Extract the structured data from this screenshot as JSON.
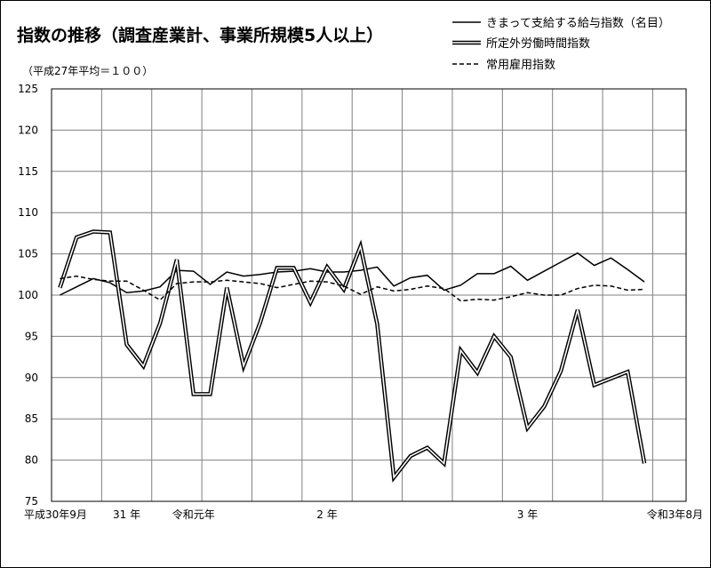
{
  "chart_data": {
    "type": "line",
    "title": "指数の推移（調査産業計、事業所規模5人以上）",
    "subtitle": "（平成27年平均＝１００）",
    "ylim": [
      75,
      125
    ],
    "yticks": [
      75,
      80,
      85,
      90,
      95,
      100,
      105,
      110,
      115,
      120,
      125
    ],
    "xlabels": [
      {
        "index": 0,
        "label": "平成30年9月"
      },
      {
        "index": 4,
        "label": "31 年"
      },
      {
        "index": 8,
        "label": "令和元年"
      },
      {
        "index": 16,
        "label": "2 年"
      },
      {
        "index": 28,
        "label": "3 年"
      },
      {
        "index": 35,
        "label": "令和3年8月"
      }
    ],
    "grid": true,
    "legend_position": "top-right",
    "series": [
      {
        "name": "きまって支給する給与指数（名目）",
        "style": "solid",
        "values": [
          100.0,
          101.0,
          102.0,
          101.5,
          100.3,
          100.5,
          101.0,
          103.0,
          102.9,
          101.3,
          102.8,
          102.3,
          102.5,
          102.8,
          102.9,
          103.2,
          102.8,
          102.8,
          103.0,
          103.4,
          101.1,
          102.1,
          102.4,
          100.6,
          101.2,
          102.6,
          102.6,
          103.5,
          101.8,
          102.9,
          104.0,
          105.1,
          103.6,
          104.5,
          103.1,
          101.6
        ]
      },
      {
        "name": "所定外労働時間指数",
        "style": "double",
        "values": [
          100.9,
          107.0,
          107.7,
          107.6,
          94.0,
          91.4,
          96.6,
          104.3,
          88.0,
          88.0,
          100.9,
          91.4,
          96.7,
          103.3,
          103.3,
          99.1,
          103.4,
          100.7,
          105.9,
          96.5,
          77.9,
          80.5,
          81.5,
          79.6,
          93.3,
          90.6,
          95.0,
          92.5,
          83.9,
          86.5,
          90.8,
          98.2,
          89.1,
          89.9,
          90.7,
          79.6
        ]
      },
      {
        "name": "常用雇用指数",
        "style": "dashed",
        "values": [
          102.0,
          102.3,
          101.9,
          101.7,
          101.7,
          100.6,
          99.4,
          101.4,
          101.6,
          101.6,
          101.8,
          101.6,
          101.4,
          100.9,
          101.3,
          101.7,
          101.6,
          101.1,
          100.1,
          101.0,
          100.5,
          100.7,
          101.1,
          100.8,
          99.3,
          99.5,
          99.4,
          99.8,
          100.3,
          100.0,
          100.0,
          100.8,
          101.2,
          101.1,
          100.6,
          100.7
        ]
      }
    ]
  },
  "colors": {
    "line": "#000000",
    "grid": "#808080",
    "background": "#ffffff"
  }
}
